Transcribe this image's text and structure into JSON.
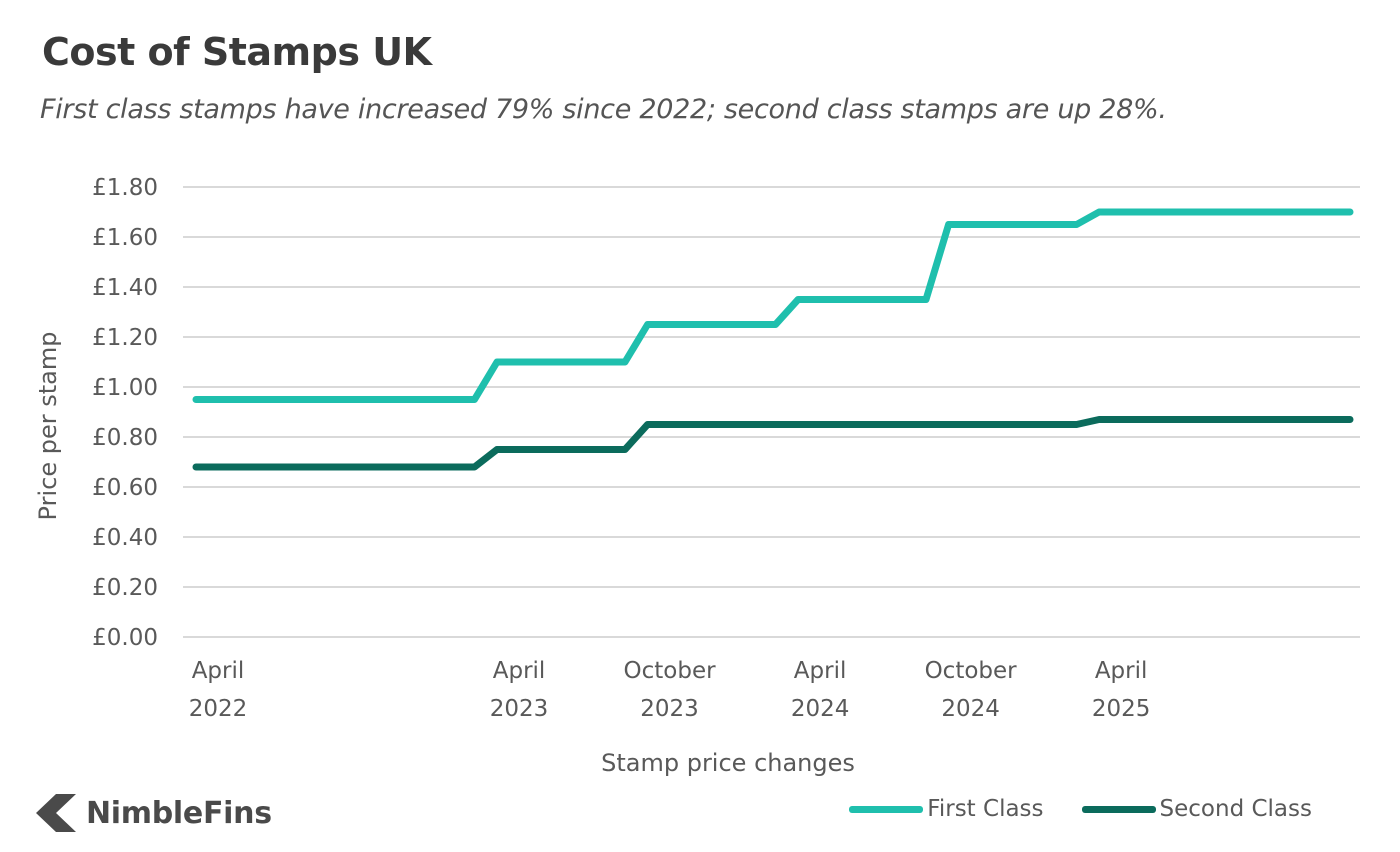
{
  "chart_data": {
    "type": "line",
    "title": "Cost of Stamps UK",
    "subtitle": "First class stamps have increased 79% since 2022; second class stamps are up 28%.",
    "xlabel": "Stamp price changes",
    "ylabel": "Price per stamp",
    "ylim": [
      0,
      1.8
    ],
    "y_ticks": [
      "£0.00",
      "£0.20",
      "£0.40",
      "£0.60",
      "£0.80",
      "£1.00",
      "£1.20",
      "£1.40",
      "£1.60",
      "£1.80"
    ],
    "y_tick_values": [
      0,
      0.2,
      0.4,
      0.6,
      0.8,
      1.0,
      1.2,
      1.4,
      1.6,
      1.8
    ],
    "x_ticks": [
      {
        "line1": "April",
        "line2": "2022",
        "month_index": 0
      },
      {
        "line1": "April",
        "line2": "2023",
        "month_index": 12
      },
      {
        "line1": "October",
        "line2": "2023",
        "month_index": 18
      },
      {
        "line1": "April",
        "line2": "2024",
        "month_index": 24
      },
      {
        "line1": "October",
        "line2": "2024",
        "month_index": 30
      },
      {
        "line1": "April",
        "line2": "2025",
        "month_index": 36
      }
    ],
    "x_range_months": [
      0,
      46
    ],
    "grid": true,
    "series": [
      {
        "name": "First Class",
        "color": "#1fbfad",
        "steps": [
          {
            "month_index": 0,
            "value": 0.95
          },
          {
            "month_index": 12,
            "value": 1.1
          },
          {
            "month_index": 18,
            "value": 1.25
          },
          {
            "month_index": 24,
            "value": 1.35
          },
          {
            "month_index": 30,
            "value": 1.65
          },
          {
            "month_index": 36,
            "value": 1.7
          }
        ]
      },
      {
        "name": "Second Class",
        "color": "#0b6b5c",
        "steps": [
          {
            "month_index": 0,
            "value": 0.68
          },
          {
            "month_index": 12,
            "value": 0.75
          },
          {
            "month_index": 18,
            "value": 0.85
          },
          {
            "month_index": 24,
            "value": 0.85
          },
          {
            "month_index": 30,
            "value": 0.85
          },
          {
            "month_index": 36,
            "value": 0.87
          }
        ]
      }
    ],
    "legend_position": "bottom-right"
  },
  "branding": {
    "logo_text": "NimbleFins",
    "logo_icon": "chevron-left-icon",
    "logo_color": "#4a4a4a"
  }
}
